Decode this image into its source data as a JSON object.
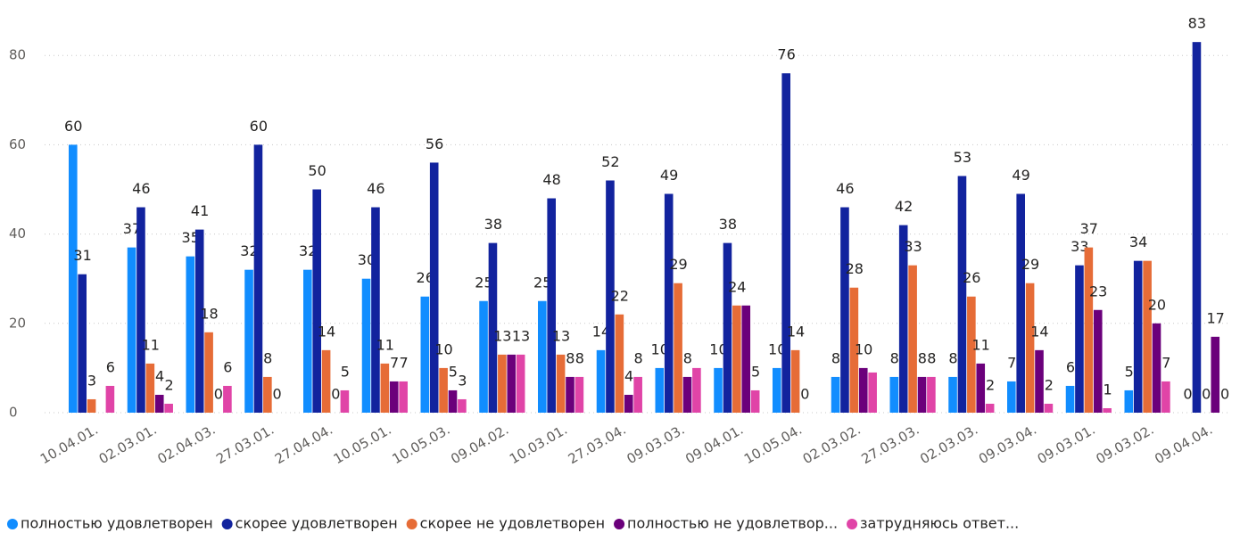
{
  "chart_data": {
    "type": "bar",
    "categories": [
      "10.04.01.",
      "02.03.01.",
      "02.04.03.",
      "27.03.01.",
      "27.04.04.",
      "10.05.01.",
      "10.05.03.",
      "09.04.02.",
      "10.03.01.",
      "27.03.04.",
      "09.03.03.",
      "09.04.01.",
      "10.05.04.",
      "02.03.02.",
      "27.03.03.",
      "02.03.03.",
      "09.03.04.",
      "09.03.01.",
      "09.03.02.",
      "09.04.04."
    ],
    "series": [
      {
        "name": "полностью удовлетворен",
        "color": "#118dff",
        "values": [
          60,
          37,
          35,
          32,
          32,
          30,
          26,
          25,
          25,
          14,
          10,
          10,
          10,
          8,
          8,
          8,
          7,
          6,
          5,
          0
        ]
      },
      {
        "name": "скорее удовлетворен",
        "color": "#12239e",
        "values": [
          31,
          46,
          41,
          60,
          50,
          46,
          56,
          38,
          48,
          52,
          49,
          38,
          76,
          46,
          42,
          53,
          49,
          33,
          34,
          83
        ]
      },
      {
        "name": "скорее не удовлетворен",
        "color": "#e66c37",
        "values": [
          3,
          11,
          18,
          8,
          14,
          11,
          10,
          13,
          13,
          22,
          29,
          24,
          14,
          28,
          33,
          26,
          29,
          37,
          34,
          0
        ]
      },
      {
        "name": "полностью не удовлетвор...",
        "color": "#6b007b",
        "values": [
          null,
          4,
          0,
          0,
          0,
          7,
          5,
          13,
          8,
          4,
          8,
          24,
          0,
          10,
          8,
          11,
          14,
          23,
          20,
          17
        ]
      },
      {
        "name": "затрудняюсь ответ...",
        "color": "#e044a7",
        "values": [
          6,
          2,
          6,
          null,
          5,
          7,
          3,
          13,
          8,
          8,
          10,
          5,
          null,
          9,
          8,
          2,
          2,
          1,
          7,
          0
        ]
      }
    ],
    "ylim": [
      0,
      86
    ],
    "yticks": [
      0,
      20,
      40,
      60,
      80
    ],
    "grid": true,
    "legend": "bottom"
  }
}
